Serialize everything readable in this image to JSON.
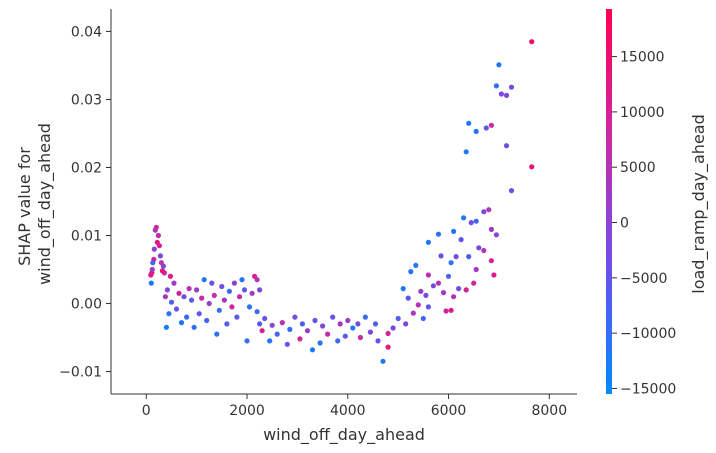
{
  "chart_data": {
    "type": "scatter",
    "title": "",
    "xlabel": "wind_off_day_ahead",
    "ylabel_lines": [
      "SHAP value for",
      "wind_off_day_ahead"
    ],
    "xlim": [
      -700,
      8550
    ],
    "ylim": [
      -0.0133,
      0.0433
    ],
    "xticks": [
      {
        "value": 0,
        "label": "0"
      },
      {
        "value": 2000,
        "label": "2000"
      },
      {
        "value": 4000,
        "label": "4000"
      },
      {
        "value": 6000,
        "label": "6000"
      },
      {
        "value": 8000,
        "label": "8000"
      }
    ],
    "yticks": [
      {
        "value": 0.04,
        "label": "0.04"
      },
      {
        "value": 0.03,
        "label": "0.03"
      },
      {
        "value": 0.02,
        "label": "0.02"
      },
      {
        "value": 0.01,
        "label": "0.01"
      },
      {
        "value": 0.0,
        "label": "0.00"
      },
      {
        "value": -0.01,
        "label": "−0.01"
      }
    ],
    "colorbar": {
      "label": "load_ramp_day_ahead",
      "min": -15500,
      "max": 19300,
      "colors": [
        "#008afb",
        "#6d4fe8",
        "#c92aa6",
        "#ff0052"
      ],
      "ticks": [
        {
          "value": 15000,
          "label": "15000"
        },
        {
          "value": 10000,
          "label": "10000"
        },
        {
          "value": 5000,
          "label": "5000"
        },
        {
          "value": 0,
          "label": "0"
        },
        {
          "value": -5000,
          "label": "−5000"
        },
        {
          "value": -10000,
          "label": "−10000"
        },
        {
          "value": -15000,
          "label": "−15000"
        }
      ]
    },
    "points": [
      {
        "x": 7650,
        "y": 0.0385,
        "c": 16000
      },
      {
        "x": 7000,
        "y": 0.0351,
        "c": -12000
      },
      {
        "x": 6950,
        "y": 0.032,
        "c": -10000
      },
      {
        "x": 7250,
        "y": 0.0318,
        "c": -2000
      },
      {
        "x": 7050,
        "y": 0.0308,
        "c": -3000
      },
      {
        "x": 7150,
        "y": 0.0306,
        "c": -1000
      },
      {
        "x": 6400,
        "y": 0.0265,
        "c": -12000
      },
      {
        "x": 6850,
        "y": 0.0262,
        "c": 8000
      },
      {
        "x": 6750,
        "y": 0.0258,
        "c": -6000
      },
      {
        "x": 6550,
        "y": 0.0253,
        "c": -11000
      },
      {
        "x": 7150,
        "y": 0.0232,
        "c": -3000
      },
      {
        "x": 6350,
        "y": 0.0223,
        "c": -12000
      },
      {
        "x": 7650,
        "y": 0.0201,
        "c": 15000
      },
      {
        "x": 7250,
        "y": 0.0166,
        "c": -4000
      },
      {
        "x": 6700,
        "y": 0.0135,
        "c": -3000
      },
      {
        "x": 6300,
        "y": 0.0126,
        "c": -12000
      },
      {
        "x": 6800,
        "y": 0.0138,
        "c": 5000
      },
      {
        "x": 6550,
        "y": 0.0121,
        "c": -9000
      },
      {
        "x": 6450,
        "y": 0.0119,
        "c": -3000
      },
      {
        "x": 6100,
        "y": 0.0106,
        "c": -12000
      },
      {
        "x": 6850,
        "y": 0.0109,
        "c": 2000
      },
      {
        "x": 6950,
        "y": 0.0101,
        "c": -1000
      },
      {
        "x": 5800,
        "y": 0.0102,
        "c": -11000
      },
      {
        "x": 5600,
        "y": 0.009,
        "c": -12000
      },
      {
        "x": 6250,
        "y": 0.0094,
        "c": -5000
      },
      {
        "x": 6600,
        "y": 0.0082,
        "c": -2000
      },
      {
        "x": 6700,
        "y": 0.0078,
        "c": 4000
      },
      {
        "x": 6850,
        "y": 0.0063,
        "c": 10000
      },
      {
        "x": 6400,
        "y": 0.0069,
        "c": -8000
      },
      {
        "x": 6150,
        "y": 0.0069,
        "c": -2000
      },
      {
        "x": 6050,
        "y": 0.006,
        "c": -10000
      },
      {
        "x": 5850,
        "y": 0.007,
        "c": -4000
      },
      {
        "x": 5350,
        "y": 0.0056,
        "c": -12000
      },
      {
        "x": 5250,
        "y": 0.0047,
        "c": -11000
      },
      {
        "x": 5600,
        "y": 0.0042,
        "c": 6000
      },
      {
        "x": 6000,
        "y": 0.004,
        "c": -7000
      },
      {
        "x": 6550,
        "y": 0.005,
        "c": 3000
      },
      {
        "x": 6900,
        "y": 0.0042,
        "c": 12000
      },
      {
        "x": 6500,
        "y": 0.003,
        "c": 8000
      },
      {
        "x": 6200,
        "y": 0.0022,
        "c": -4000
      },
      {
        "x": 5800,
        "y": 0.003,
        "c": 5000
      },
      {
        "x": 5700,
        "y": 0.0026,
        "c": -2000
      },
      {
        "x": 6350,
        "y": 0.002,
        "c": 10000
      },
      {
        "x": 5100,
        "y": 0.0022,
        "c": -12000
      },
      {
        "x": 5450,
        "y": 0.0018,
        "c": 1000
      },
      {
        "x": 5550,
        "y": 0.0012,
        "c": -3000
      },
      {
        "x": 5200,
        "y": 0.0008,
        "c": -6000
      },
      {
        "x": 5900,
        "y": 0.0016,
        "c": 2000
      },
      {
        "x": 6100,
        "y": 0.001,
        "c": 4000
      },
      {
        "x": 6050,
        "y": -0.001,
        "c": 12000
      },
      {
        "x": 5950,
        "y": -0.0011,
        "c": 9000
      },
      {
        "x": 5600,
        "y": -0.0005,
        "c": -5000
      },
      {
        "x": 5400,
        "y": -0.0002,
        "c": 6000
      },
      {
        "x": 5300,
        "y": -0.0014,
        "c": 3000
      },
      {
        "x": 5500,
        "y": -0.0022,
        "c": -9000
      },
      {
        "x": 5150,
        "y": -0.003,
        "c": -2000
      },
      {
        "x": 5000,
        "y": -0.0022,
        "c": -6000
      },
      {
        "x": 4900,
        "y": -0.0036,
        "c": -3000
      },
      {
        "x": 4800,
        "y": -0.0044,
        "c": 10000
      },
      {
        "x": 4800,
        "y": -0.0064,
        "c": 13000
      },
      {
        "x": 4700,
        "y": -0.0085,
        "c": -12000
      },
      {
        "x": 4600,
        "y": -0.0055,
        "c": -5000
      },
      {
        "x": 4550,
        "y": -0.003,
        "c": -7000
      },
      {
        "x": 4450,
        "y": -0.0042,
        "c": -2000
      },
      {
        "x": 4350,
        "y": -0.002,
        "c": -10000
      },
      {
        "x": 4250,
        "y": -0.005,
        "c": 8000
      },
      {
        "x": 4200,
        "y": -0.003,
        "c": -3000
      },
      {
        "x": 4100,
        "y": -0.0036,
        "c": -12000
      },
      {
        "x": 4000,
        "y": -0.0025,
        "c": 1000
      },
      {
        "x": 3950,
        "y": -0.0048,
        "c": -6000
      },
      {
        "x": 3850,
        "y": -0.003,
        "c": 4000
      },
      {
        "x": 3800,
        "y": -0.0055,
        "c": -9000
      },
      {
        "x": 3700,
        "y": -0.002,
        "c": -5000
      },
      {
        "x": 3600,
        "y": -0.0045,
        "c": 7000
      },
      {
        "x": 3500,
        "y": -0.0033,
        "c": -2000
      },
      {
        "x": 3450,
        "y": -0.0058,
        "c": -11000
      },
      {
        "x": 3350,
        "y": -0.0025,
        "c": -4000
      },
      {
        "x": 3300,
        "y": -0.0068,
        "c": -13000
      },
      {
        "x": 3200,
        "y": -0.004,
        "c": 2000
      },
      {
        "x": 3100,
        "y": -0.003,
        "c": -7000
      },
      {
        "x": 3050,
        "y": -0.0052,
        "c": 9000
      },
      {
        "x": 2950,
        "y": -0.002,
        "c": -3000
      },
      {
        "x": 2850,
        "y": -0.0038,
        "c": -10000
      },
      {
        "x": 2800,
        "y": -0.006,
        "c": -5000
      },
      {
        "x": 2700,
        "y": -0.0028,
        "c": 6000
      },
      {
        "x": 2600,
        "y": -0.0045,
        "c": -8000
      },
      {
        "x": 2500,
        "y": -0.0032,
        "c": 0
      },
      {
        "x": 2450,
        "y": -0.0055,
        "c": -12000
      },
      {
        "x": 2350,
        "y": -0.0022,
        "c": -4000
      },
      {
        "x": 2300,
        "y": -0.004,
        "c": 11000
      },
      {
        "x": 2250,
        "y": -0.003,
        "c": -6000
      },
      {
        "x": 2200,
        "y": -0.0012,
        "c": -9000
      },
      {
        "x": 2150,
        "y": 0.004,
        "c": 10000
      },
      {
        "x": 2200,
        "y": 0.0035,
        "c": 5000
      },
      {
        "x": 2250,
        "y": 0.002,
        "c": -2000
      },
      {
        "x": 2100,
        "y": 0.0015,
        "c": 3000
      },
      {
        "x": 2050,
        "y": -0.0005,
        "c": -11000
      },
      {
        "x": 2000,
        "y": -0.0055,
        "c": -10000
      },
      {
        "x": 1950,
        "y": 0.002,
        "c": -5000
      },
      {
        "x": 1900,
        "y": 0.0035,
        "c": -12000
      },
      {
        "x": 1850,
        "y": 0.001,
        "c": 7000
      },
      {
        "x": 1800,
        "y": -0.002,
        "c": -6000
      },
      {
        "x": 1750,
        "y": 0.003,
        "c": 0
      },
      {
        "x": 1700,
        "y": -0.0005,
        "c": 9000
      },
      {
        "x": 1650,
        "y": 0.0018,
        "c": -9000
      },
      {
        "x": 1600,
        "y": -0.003,
        "c": -7000
      },
      {
        "x": 1550,
        "y": 0.0005,
        "c": 4000
      },
      {
        "x": 1500,
        "y": 0.0025,
        "c": -3000
      },
      {
        "x": 1450,
        "y": -0.001,
        "c": -10000
      },
      {
        "x": 1400,
        "y": -0.0045,
        "c": -11000
      },
      {
        "x": 1350,
        "y": 0.0012,
        "c": 6000
      },
      {
        "x": 1300,
        "y": 0.003,
        "c": -4000
      },
      {
        "x": 1250,
        "y": 0.0,
        "c": 1000
      },
      {
        "x": 1200,
        "y": -0.0025,
        "c": -8000
      },
      {
        "x": 1150,
        "y": 0.0035,
        "c": -12000
      },
      {
        "x": 1100,
        "y": 0.0008,
        "c": 8000
      },
      {
        "x": 1050,
        "y": -0.0015,
        "c": -5000
      },
      {
        "x": 1000,
        "y": 0.002,
        "c": 2000
      },
      {
        "x": 950,
        "y": -0.0035,
        "c": -10000
      },
      {
        "x": 900,
        "y": 0.0005,
        "c": -6000
      },
      {
        "x": 850,
        "y": 0.0022,
        "c": 5000
      },
      {
        "x": 800,
        "y": -0.002,
        "c": -9000
      },
      {
        "x": 750,
        "y": 0.001,
        "c": -2000
      },
      {
        "x": 700,
        "y": -0.0028,
        "c": -12000
      },
      {
        "x": 650,
        "y": 0.0015,
        "c": 10000
      },
      {
        "x": 600,
        "y": -0.0008,
        "c": -4000
      },
      {
        "x": 550,
        "y": 0.003,
        "c": 3000
      },
      {
        "x": 500,
        "y": 0.0002,
        "c": -7000
      },
      {
        "x": 480,
        "y": 0.004,
        "c": 12000
      },
      {
        "x": 450,
        "y": -0.0015,
        "c": -11000
      },
      {
        "x": 420,
        "y": 0.002,
        "c": -1000
      },
      {
        "x": 400,
        "y": -0.0035,
        "c": -13000
      },
      {
        "x": 380,
        "y": 0.001,
        "c": 4000
      },
      {
        "x": 360,
        "y": 0.0045,
        "c": 8000
      },
      {
        "x": 340,
        "y": 0.0055,
        "c": -3000
      },
      {
        "x": 320,
        "y": 0.0048,
        "c": 14000
      },
      {
        "x": 300,
        "y": 0.006,
        "c": 6000
      },
      {
        "x": 280,
        "y": 0.007,
        "c": -2000
      },
      {
        "x": 260,
        "y": 0.0085,
        "c": 11000
      },
      {
        "x": 240,
        "y": 0.01,
        "c": 7000
      },
      {
        "x": 220,
        "y": 0.009,
        "c": 13000
      },
      {
        "x": 200,
        "y": 0.0112,
        "c": 9000
      },
      {
        "x": 180,
        "y": 0.0108,
        "c": 4000
      },
      {
        "x": 160,
        "y": 0.008,
        "c": -1000
      },
      {
        "x": 150,
        "y": 0.0065,
        "c": 10000
      },
      {
        "x": 130,
        "y": 0.006,
        "c": -8000
      },
      {
        "x": 110,
        "y": 0.0045,
        "c": 15000
      },
      {
        "x": 100,
        "y": 0.003,
        "c": -12000
      },
      {
        "x": 120,
        "y": 0.005,
        "c": 2000
      },
      {
        "x": 90,
        "y": 0.0042,
        "c": 12000
      }
    ]
  }
}
